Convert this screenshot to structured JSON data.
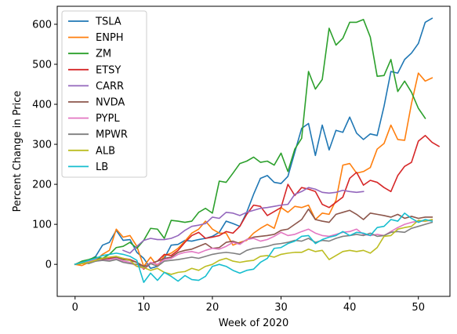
{
  "chart_data": {
    "type": "line",
    "title": "",
    "xlabel": "Week of 2020",
    "ylabel": "Percent Change in Price",
    "xlim": [
      -2.6,
      54.6
    ],
    "ylim": [
      -80,
      645
    ],
    "xticks": [
      0,
      10,
      20,
      30,
      40,
      50
    ],
    "yticks": [
      0,
      100,
      200,
      300,
      400,
      500,
      600
    ],
    "grid": false,
    "legend_position": "top-left",
    "series": [
      {
        "name": "TSLA",
        "color": "#1f77b4",
        "values": [
          0,
          5,
          10,
          20,
          48,
          55,
          85,
          60,
          62,
          30,
          15,
          -10,
          -5,
          15,
          48,
          50,
          60,
          58,
          62,
          65,
          70,
          80,
          108,
          102,
          95,
          130,
          175,
          215,
          222,
          205,
          202,
          220,
          280,
          340,
          352,
          272,
          348,
          286,
          335,
          330,
          368,
          328,
          312,
          326,
          322,
          395,
          482,
          478,
          512,
          528,
          552,
          605,
          615
        ]
      },
      {
        "name": "ENPH",
        "color": "#ff7f0e",
        "values": [
          0,
          -3,
          5,
          10,
          25,
          35,
          88,
          68,
          72,
          45,
          -5,
          18,
          -5,
          22,
          28,
          40,
          58,
          78,
          88,
          108,
          88,
          78,
          78,
          48,
          55,
          60,
          78,
          90,
          100,
          90,
          142,
          130,
          145,
          142,
          148,
          112,
          128,
          125,
          160,
          248,
          252,
          228,
          232,
          242,
          288,
          302,
          348,
          312,
          310,
          402,
          478,
          458,
          466
        ]
      },
      {
        "name": "ZM",
        "color": "#2ca02c",
        "values": [
          0,
          8,
          12,
          18,
          15,
          25,
          42,
          45,
          55,
          40,
          60,
          90,
          88,
          65,
          110,
          108,
          105,
          108,
          130,
          140,
          128,
          208,
          205,
          228,
          252,
          258,
          268,
          255,
          258,
          248,
          278,
          232,
          288,
          315,
          482,
          438,
          462,
          590,
          548,
          565,
          605,
          605,
          612,
          568,
          470,
          472,
          512,
          432,
          458,
          430,
          390,
          365,
          null
        ]
      },
      {
        "name": "ETSY",
        "color": "#d62728",
        "values": [
          0,
          2,
          5,
          8,
          12,
          15,
          18,
          15,
          12,
          5,
          -12,
          2,
          8,
          25,
          22,
          35,
          55,
          72,
          80,
          65,
          68,
          72,
          82,
          78,
          95,
          125,
          148,
          145,
          122,
          132,
          142,
          200,
          172,
          192,
          188,
          182,
          150,
          142,
          155,
          168,
          215,
          230,
          198,
          210,
          205,
          192,
          182,
          222,
          245,
          255,
          308,
          322,
          305,
          295
        ]
      },
      {
        "name": "CARR",
        "color": "#9467bd",
        "values": [
          null,
          null,
          null,
          null,
          null,
          null,
          null,
          35,
          28,
          45,
          60,
          65,
          62,
          62,
          65,
          72,
          85,
          95,
          98,
          102,
          118,
          115,
          130,
          128,
          122,
          130,
          135,
          140,
          142,
          145,
          148,
          150,
          175,
          182,
          192,
          188,
          180,
          178,
          180,
          185,
          182,
          180,
          182,
          null
        ]
      },
      {
        "name": "NVDA",
        "color": "#8c564b",
        "values": [
          0,
          5,
          8,
          12,
          15,
          12,
          18,
          12,
          10,
          5,
          -5,
          2,
          8,
          15,
          18,
          30,
          35,
          38,
          45,
          52,
          40,
          42,
          55,
          58,
          52,
          62,
          68,
          70,
          72,
          75,
          85,
          88,
          100,
          112,
          138,
          112,
          108,
          105,
          125,
          130,
          135,
          125,
          112,
          128,
          125,
          122,
          118,
          125,
          115,
          120,
          115,
          118,
          118
        ]
      },
      {
        "name": "PYPL",
        "color": "#e377c2",
        "values": [
          0,
          5,
          8,
          12,
          10,
          12,
          15,
          8,
          5,
          -5,
          -10,
          5,
          0,
          12,
          15,
          25,
          30,
          32,
          28,
          35,
          40,
          38,
          45,
          55,
          50,
          62,
          65,
          58,
          62,
          70,
          80,
          72,
          75,
          82,
          88,
          78,
          72,
          70,
          75,
          80,
          82,
          88,
          75,
          72,
          75,
          72,
          82,
          92,
          100,
          105,
          108,
          108,
          110
        ]
      },
      {
        "name": "MPWR",
        "color": "#7f7f7f",
        "values": [
          0,
          5,
          2,
          8,
          10,
          8,
          12,
          5,
          2,
          0,
          -8,
          2,
          -5,
          8,
          10,
          12,
          15,
          18,
          15,
          20,
          25,
          28,
          30,
          28,
          25,
          35,
          40,
          42,
          45,
          50,
          52,
          55,
          60,
          58,
          65,
          55,
          60,
          58,
          65,
          70,
          72,
          75,
          72,
          78,
          70,
          72,
          80,
          82,
          80,
          90,
          95,
          100,
          105
        ]
      },
      {
        "name": "ALB",
        "color": "#bcbd22",
        "values": [
          0,
          2,
          5,
          10,
          15,
          18,
          20,
          15,
          10,
          -5,
          -8,
          -15,
          -10,
          -20,
          -25,
          -20,
          -18,
          -10,
          -15,
          -5,
          0,
          10,
          15,
          8,
          5,
          8,
          10,
          20,
          22,
          18,
          25,
          28,
          30,
          30,
          38,
          32,
          35,
          12,
          22,
          32,
          35,
          32,
          35,
          28,
          42,
          70,
          72,
          88,
          92,
          95,
          110,
          108,
          112
        ]
      },
      {
        "name": "LB",
        "color": "#17becf",
        "values": [
          0,
          5,
          10,
          15,
          22,
          25,
          28,
          25,
          20,
          10,
          -45,
          -22,
          -40,
          -20,
          -30,
          -42,
          -28,
          -38,
          -40,
          -30,
          -5,
          0,
          -5,
          -15,
          -22,
          -15,
          -12,
          5,
          15,
          40,
          42,
          52,
          58,
          70,
          72,
          52,
          62,
          68,
          72,
          82,
          72,
          80,
          78,
          72,
          92,
          95,
          112,
          108,
          128,
          115,
          105,
          112,
          108
        ]
      }
    ]
  }
}
